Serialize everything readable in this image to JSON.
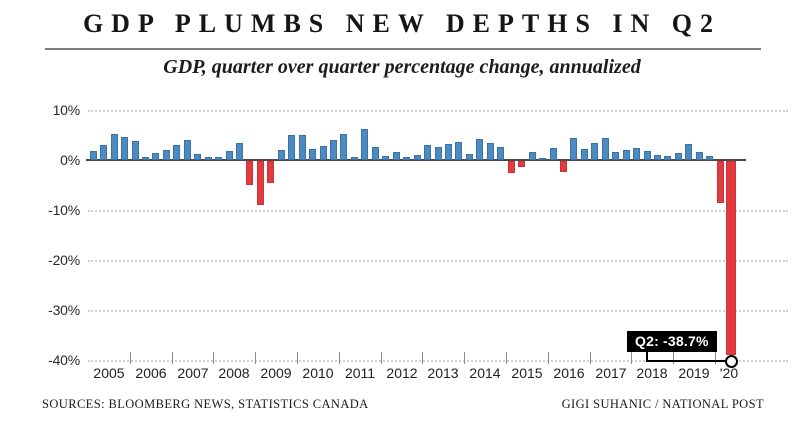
{
  "header": {
    "title": "GDP PLUMBS NEW DEPTHS IN Q2",
    "subtitle": "GDP, quarter over quarter percentage change, annualized"
  },
  "chart_data": {
    "type": "bar",
    "title": "GDP PLUMBS NEW DEPTHS IN Q2",
    "subtitle": "GDP, quarter over quarter percentage change, annualized",
    "ylabel": "quarter over quarter percentage change, annualized (%)",
    "ylim": [
      -40,
      10
    ],
    "grid": "dotted horizontal",
    "y_ticks": [
      {
        "label": "10%",
        "value": 10
      },
      {
        "label": "0%",
        "value": 0
      },
      {
        "label": "-10%",
        "value": -10
      },
      {
        "label": "-20%",
        "value": -20
      },
      {
        "label": "-30%",
        "value": -30
      },
      {
        "label": "-40%",
        "value": -40
      }
    ],
    "years": [
      {
        "year": "2005",
        "values": [
          1.7,
          3.0,
          5.2,
          4.5
        ]
      },
      {
        "year": "2006",
        "values": [
          3.7,
          0.5,
          1.3,
          2.0
        ]
      },
      {
        "year": "2007",
        "values": [
          2.9,
          4.0,
          1.2,
          0.6
        ]
      },
      {
        "year": "2008",
        "values": [
          0.5,
          1.8,
          3.3,
          -4.8
        ]
      },
      {
        "year": "2009",
        "values": [
          -8.8,
          -4.3,
          2.0,
          4.9
        ]
      },
      {
        "year": "2010",
        "values": [
          5.0,
          2.2,
          2.8,
          4.0
        ]
      },
      {
        "year": "2011",
        "values": [
          5.2,
          0.5,
          6.2,
          2.5
        ]
      },
      {
        "year": "2012",
        "values": [
          0.8,
          1.6,
          0.6,
          0.9
        ]
      },
      {
        "year": "2013",
        "values": [
          3.0,
          2.6,
          3.2,
          3.6
        ]
      },
      {
        "year": "2014",
        "values": [
          1.2,
          4.1,
          3.3,
          2.5
        ]
      },
      {
        "year": "2015",
        "values": [
          -2.4,
          -1.2,
          1.5,
          0.3
        ]
      },
      {
        "year": "2016",
        "values": [
          2.4,
          -2.2,
          4.4,
          2.1
        ]
      },
      {
        "year": "2017",
        "values": [
          3.4,
          4.4,
          1.5,
          1.9
        ]
      },
      {
        "year": "2018",
        "values": [
          2.3,
          1.7,
          1.0,
          0.8
        ]
      },
      {
        "year": "2019",
        "values": [
          1.3,
          3.2,
          1.5,
          0.7
        ]
      },
      {
        "year": "'20",
        "values": [
          -8.3,
          -38.7
        ]
      }
    ],
    "annotation": {
      "label": "Q2: -38.7%",
      "target": "2020 Q2",
      "value": -38.7
    },
    "colors": {
      "positive": "#4c8bc2",
      "negative": "#e13b3f",
      "annotation_bg": "#000000",
      "annotation_text": "#ffffff"
    },
    "legend": "none"
  },
  "footer": {
    "sources": "SOURCES: BLOOMBERG NEWS, STATISTICS CANADA",
    "credit": "GIGI SUHANIC / NATIONAL POST"
  }
}
